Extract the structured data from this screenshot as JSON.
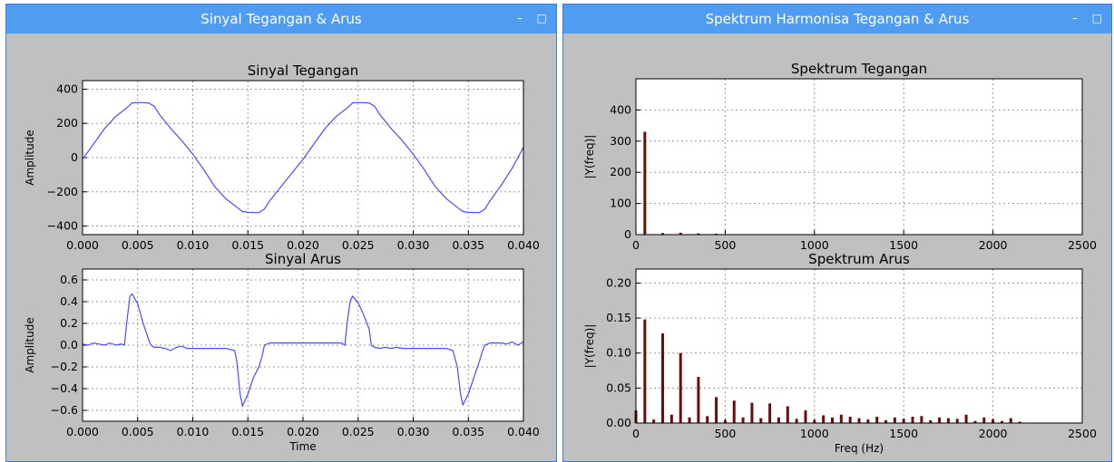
{
  "windows": {
    "left": {
      "title": "Sinyal Tegangan & Arus"
    },
    "right": {
      "title": "Spektrum Harmonisa Tegangan & Arus"
    }
  },
  "window_buttons": {
    "minimize": "–",
    "maximize": "□"
  },
  "colors": {
    "line": "#4b4bff",
    "bar": "#6b0c0c",
    "grid": "#9a9a9a"
  },
  "chart_data": [
    {
      "type": "line",
      "title": "Sinyal Tegangan",
      "xlabel": "",
      "ylabel": "Amplitude",
      "xlim": [
        0,
        0.04
      ],
      "ylim": [
        -450,
        450
      ],
      "grid": true,
      "xticks": [
        "0.000",
        "0.005",
        "0.010",
        "0.015",
        "0.020",
        "0.025",
        "0.030",
        "0.035",
        "0.040"
      ],
      "yticks": [
        "−400",
        "−200",
        "0",
        "200",
        "400"
      ],
      "ytick_values": [
        -400,
        -200,
        0,
        200,
        400
      ],
      "x": [
        0,
        0.001,
        0.002,
        0.003,
        0.004,
        0.0045,
        0.005,
        0.006,
        0.0065,
        0.007,
        0.008,
        0.009,
        0.01,
        0.011,
        0.012,
        0.013,
        0.014,
        0.0145,
        0.015,
        0.016,
        0.0165,
        0.017,
        0.018,
        0.019,
        0.02,
        0.021,
        0.022,
        0.023,
        0.024,
        0.0245,
        0.025,
        0.026,
        0.0265,
        0.027,
        0.028,
        0.029,
        0.03,
        0.031,
        0.032,
        0.033,
        0.034,
        0.0345,
        0.035,
        0.036,
        0.0365,
        0.037,
        0.038,
        0.039,
        0.04
      ],
      "y": [
        -10,
        80,
        170,
        240,
        290,
        320,
        322,
        320,
        300,
        250,
        170,
        100,
        20,
        -70,
        -170,
        -240,
        -290,
        -315,
        -320,
        -322,
        -300,
        -250,
        -170,
        -90,
        -10,
        80,
        170,
        240,
        290,
        320,
        322,
        320,
        300,
        250,
        170,
        100,
        20,
        -70,
        -170,
        -240,
        -290,
        -315,
        -320,
        -322,
        -300,
        -250,
        -160,
        -60,
        60
      ]
    },
    {
      "type": "line",
      "title": "Sinyal Arus",
      "xlabel": "Time",
      "ylabel": "Amplitude",
      "xlim": [
        0,
        0.04
      ],
      "ylim": [
        -0.7,
        0.7
      ],
      "grid": true,
      "xticks": [
        "0.000",
        "0.005",
        "0.010",
        "0.015",
        "0.020",
        "0.025",
        "0.030",
        "0.035",
        "0.040"
      ],
      "yticks": [
        "−0.6",
        "−0.4",
        "−0.2",
        "0.0",
        "0.2",
        "0.4",
        "0.6"
      ],
      "ytick_values": [
        -0.6,
        -0.4,
        -0.2,
        0,
        0.2,
        0.4,
        0.6
      ],
      "x": [
        0,
        0.0005,
        0.001,
        0.0015,
        0.002,
        0.0025,
        0.003,
        0.0035,
        0.0038,
        0.004,
        0.0043,
        0.0045,
        0.005,
        0.0055,
        0.006,
        0.0062,
        0.0065,
        0.007,
        0.0075,
        0.008,
        0.0085,
        0.009,
        0.0095,
        0.01,
        0.011,
        0.012,
        0.013,
        0.0138,
        0.014,
        0.0143,
        0.0145,
        0.015,
        0.0155,
        0.016,
        0.0163,
        0.0165,
        0.017,
        0.018,
        0.019,
        0.02,
        0.021,
        0.022,
        0.023,
        0.0235,
        0.0238,
        0.024,
        0.0243,
        0.0245,
        0.025,
        0.0255,
        0.026,
        0.0262,
        0.0265,
        0.027,
        0.0275,
        0.028,
        0.0285,
        0.029,
        0.0295,
        0.03,
        0.031,
        0.032,
        0.033,
        0.0336,
        0.034,
        0.0343,
        0.0345,
        0.035,
        0.0355,
        0.036,
        0.0363,
        0.0365,
        0.037,
        0.0375,
        0.038,
        0.0385,
        0.039,
        0.0395,
        0.04
      ],
      "y": [
        0.01,
        0.0,
        0.02,
        0.01,
        0.0,
        0.02,
        0.0,
        0.01,
        0.0,
        0.2,
        0.45,
        0.47,
        0.38,
        0.2,
        0.05,
        0.0,
        -0.02,
        -0.02,
        -0.03,
        -0.05,
        -0.02,
        -0.01,
        -0.03,
        -0.03,
        -0.03,
        -0.03,
        -0.03,
        -0.05,
        -0.15,
        -0.45,
        -0.56,
        -0.45,
        -0.3,
        -0.2,
        -0.1,
        0.0,
        0.02,
        0.02,
        0.02,
        0.02,
        0.02,
        0.02,
        0.02,
        0.02,
        0.0,
        0.2,
        0.41,
        0.45,
        0.39,
        0.28,
        0.15,
        0.0,
        -0.02,
        -0.03,
        -0.02,
        -0.03,
        -0.02,
        -0.03,
        -0.03,
        -0.03,
        -0.03,
        -0.03,
        -0.03,
        -0.05,
        -0.2,
        -0.45,
        -0.55,
        -0.45,
        -0.3,
        -0.15,
        -0.05,
        0.0,
        0.02,
        0.02,
        0.02,
        0.01,
        0.03,
        0.0,
        0.03
      ]
    },
    {
      "type": "bar",
      "title": "Spektrum Tegangan",
      "xlabel": "",
      "ylabel": "|Y(freq)|",
      "xlim": [
        0,
        2500
      ],
      "ylim": [
        0,
        500
      ],
      "grid": true,
      "xticks": [
        "0",
        "500",
        "1000",
        "1500",
        "2000",
        "2500"
      ],
      "xtick_values": [
        0,
        500,
        1000,
        1500,
        2000,
        2500
      ],
      "yticks": [
        "0",
        "100",
        "200",
        "300",
        "400"
      ],
      "ytick_values": [
        0,
        100,
        200,
        300,
        400
      ],
      "x": [
        50,
        150,
        250,
        350,
        450
      ],
      "values": [
        330,
        5,
        6,
        4,
        3
      ]
    },
    {
      "type": "bar",
      "title": "Spektrum Arus",
      "xlabel": "Freq (Hz)",
      "ylabel": "|Y(freq)|",
      "xlim": [
        0,
        2500
      ],
      "ylim": [
        0,
        0.22
      ],
      "grid": true,
      "xticks": [
        "0",
        "500",
        "1000",
        "1500",
        "2000",
        "2500"
      ],
      "xtick_values": [
        0,
        500,
        1000,
        1500,
        2000,
        2500
      ],
      "yticks": [
        "0.00",
        "0.05",
        "0.10",
        "0.15",
        "0.20"
      ],
      "ytick_values": [
        0,
        0.05,
        0.1,
        0.15,
        0.2
      ],
      "x": [
        0,
        50,
        100,
        150,
        200,
        250,
        300,
        350,
        400,
        450,
        500,
        550,
        600,
        650,
        700,
        750,
        800,
        850,
        900,
        950,
        1000,
        1050,
        1100,
        1150,
        1200,
        1250,
        1300,
        1350,
        1400,
        1450,
        1500,
        1550,
        1600,
        1650,
        1700,
        1750,
        1800,
        1850,
        1900,
        1950,
        2000,
        2050,
        2100,
        2150
      ],
      "values": [
        0.018,
        0.148,
        0.005,
        0.128,
        0.012,
        0.1,
        0.008,
        0.066,
        0.01,
        0.037,
        0.004,
        0.032,
        0.008,
        0.029,
        0.007,
        0.028,
        0.008,
        0.024,
        0.006,
        0.018,
        0.004,
        0.011,
        0.008,
        0.012,
        0.009,
        0.007,
        0.005,
        0.009,
        0.004,
        0.008,
        0.006,
        0.009,
        0.01,
        0.004,
        0.008,
        0.007,
        0.006,
        0.012,
        0.003,
        0.008,
        0.005,
        0.003,
        0.007,
        0.002
      ]
    }
  ]
}
